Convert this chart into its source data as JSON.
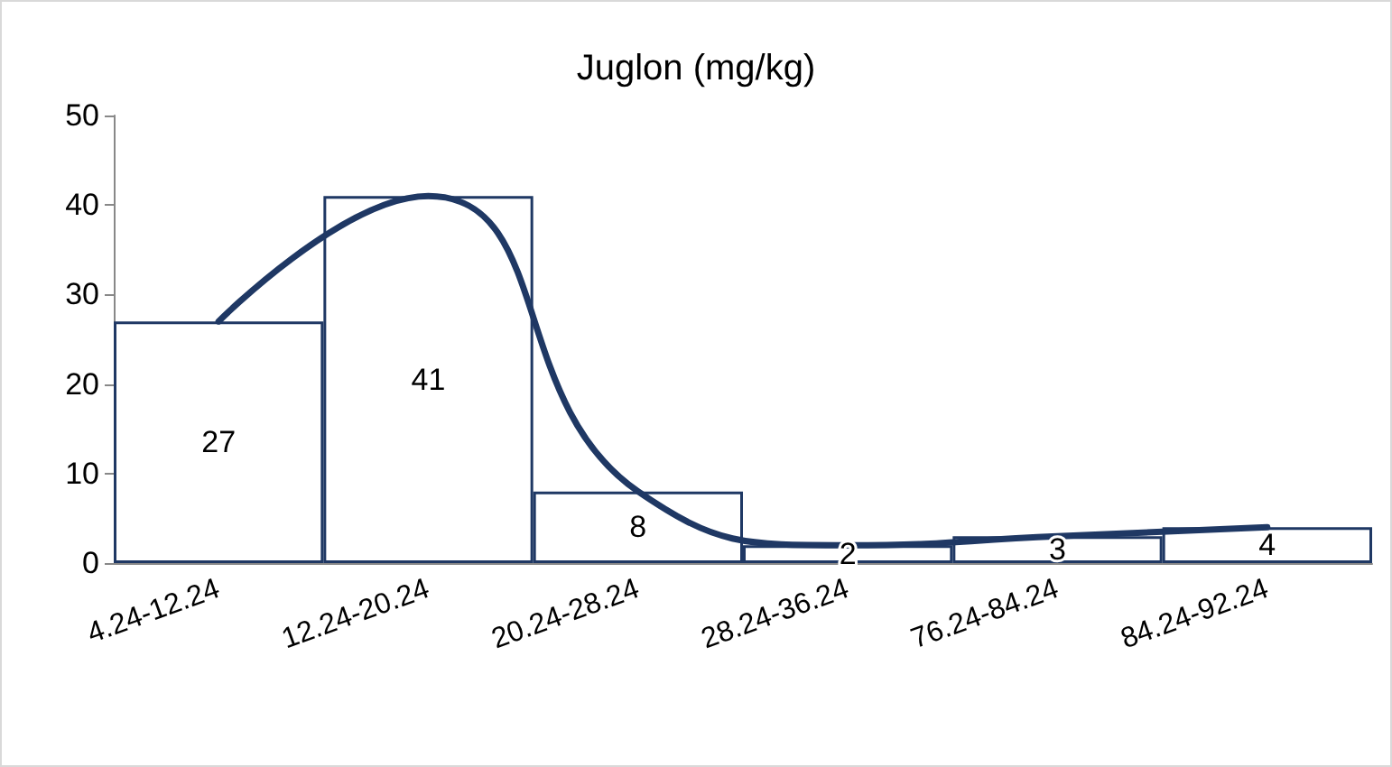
{
  "chart_data": {
    "type": "bar",
    "title": "Juglon (mg/kg)",
    "categories": [
      "4.24-12.24",
      "12.24-20.24",
      "20.24-28.24",
      "28.24-36.24",
      "76.24-84.24",
      "84.24-92.24"
    ],
    "series": [
      {
        "color": "#1f3864",
        "values": [
          27,
          41,
          8,
          2,
          3,
          4
        ],
        "value_labels": [
          "27",
          "41",
          "8",
          "2",
          "3",
          "4"
        ]
      },
      {
        "type": "line",
        "color": "#1f3864",
        "values": [
          27,
          41,
          8,
          2,
          3,
          4
        ]
      }
    ],
    "ylim": [
      0,
      50
    ],
    "yticks": [
      0,
      10,
      20,
      30,
      40,
      50
    ],
    "marker": "none"
  }
}
